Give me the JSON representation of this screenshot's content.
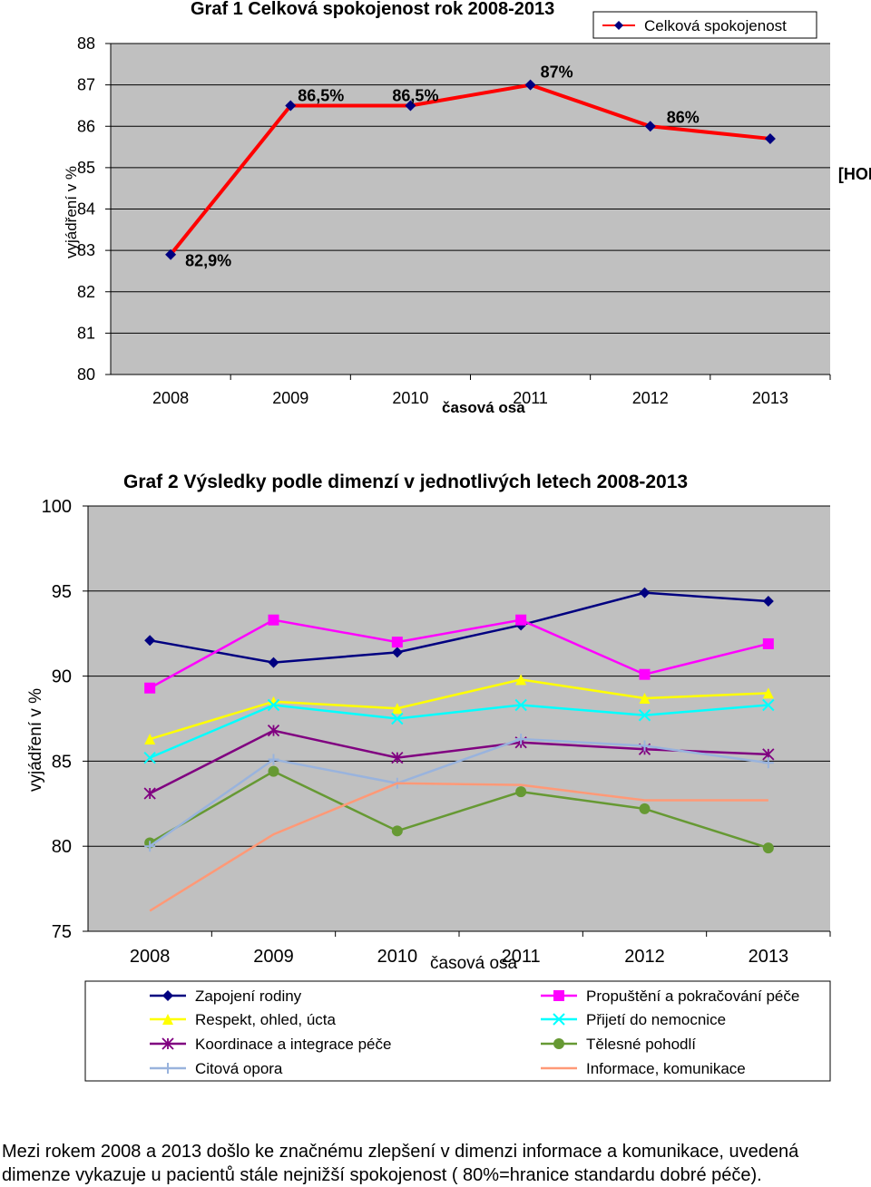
{
  "chart_data": [
    {
      "type": "line",
      "title": "Graf 1  Celková spokojenost rok 2008-2013",
      "xlabel": "časová osa",
      "ylabel": "vyjádření v %",
      "categories": [
        "2008",
        "2009",
        "2010",
        "2011",
        "2012",
        "2013"
      ],
      "ylim": [
        80,
        88
      ],
      "yticks": [
        "80",
        "81",
        "82",
        "83",
        "84",
        "85",
        "86",
        "87",
        "88"
      ],
      "grid": true,
      "legend": "top-right",
      "series": [
        {
          "name": "Celková spokojenost",
          "values": [
            82.9,
            86.5,
            86.5,
            87,
            86,
            85.7
          ],
          "data_labels": [
            "82,9%",
            "86,5%",
            "86,5%",
            "87%",
            "86%",
            "[HODNOTA] %"
          ]
        }
      ],
      "colors": {
        "line": "#ff0000",
        "marker": "#000080",
        "plot_bg": "#c0c0c0"
      }
    },
    {
      "type": "line",
      "title": "Graf 2 Výsledky podle dimenzí v jednotlivých letech 2008-2013",
      "xlabel": "časová osa",
      "ylabel": "vyjádření v %",
      "categories": [
        "2008",
        "2009",
        "2010",
        "2011",
        "2012",
        "2013"
      ],
      "ylim": [
        75,
        100
      ],
      "yticks": [
        "75",
        "80",
        "85",
        "90",
        "95",
        "100"
      ],
      "grid": true,
      "legend": "bottom",
      "series": [
        {
          "name": "Zapojení rodiny",
          "values": [
            92.1,
            90.8,
            91.4,
            93.0,
            94.9,
            94.4
          ],
          "color": "#000080",
          "marker": "diamond"
        },
        {
          "name": "Propuštění a pokračování péče",
          "values": [
            89.3,
            93.3,
            92.0,
            93.3,
            90.1,
            91.9
          ],
          "color": "#ff00ff",
          "marker": "square"
        },
        {
          "name": "Respekt, ohled, úcta",
          "values": [
            86.3,
            88.5,
            88.1,
            89.8,
            88.7,
            89.0
          ],
          "color": "#ffff00",
          "marker": "triangle"
        },
        {
          "name": "Přijetí do nemocnice",
          "values": [
            85.2,
            88.3,
            87.5,
            88.3,
            87.7,
            88.3
          ],
          "color": "#00ffff",
          "marker": "x"
        },
        {
          "name": "Koordinace a integrace péče",
          "values": [
            83.1,
            86.8,
            85.2,
            86.1,
            85.7,
            85.4
          ],
          "color": "#800080",
          "marker": "star"
        },
        {
          "name": "Tělesné pohodlí",
          "values": [
            80.2,
            84.4,
            80.9,
            83.2,
            82.2,
            79.9
          ],
          "color": "#669933",
          "marker": "circle"
        },
        {
          "name": "Citová opora",
          "values": [
            80.0,
            85.1,
            83.7,
            86.3,
            85.9,
            84.9
          ],
          "color": "#99b3dd",
          "marker": "plus"
        },
        {
          "name": "Informace, komunikace",
          "values": [
            76.2,
            80.7,
            83.7,
            83.6,
            82.7,
            82.7
          ],
          "color": "#ff9977",
          "marker": "none"
        }
      ],
      "colors": {
        "plot_bg": "#c0c0c0"
      }
    }
  ],
  "caption": "Mezi rokem 2008 a 2013 došlo ke značnému zlepšení v dimenzi informace a komunikace, uvedená dimenze vykazuje u pacientů stále nejnižší spokojenost ( 80%=hranice standardu dobré péče)."
}
